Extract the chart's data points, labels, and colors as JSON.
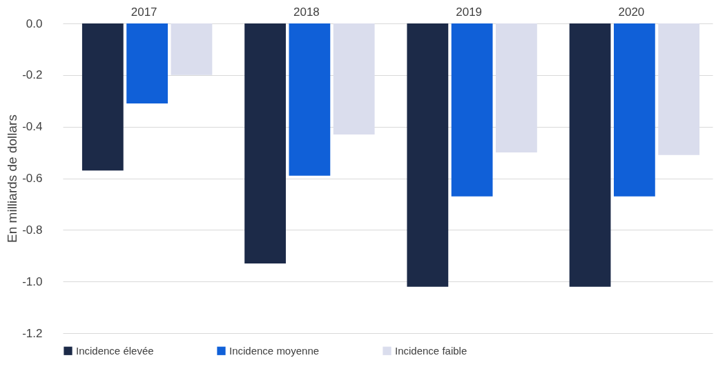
{
  "chart_data": {
    "type": "bar",
    "ylabel": "En milliards de dollars",
    "categories": [
      "2017",
      "2018",
      "2019",
      "2020"
    ],
    "series": [
      {
        "name": "Incidence élevée",
        "color": "#1c2a48",
        "values": [
          -0.57,
          -0.93,
          -1.02,
          -1.02
        ]
      },
      {
        "name": "Incidence moyenne",
        "color": "#1060d8",
        "values": [
          -0.31,
          -0.59,
          -0.67,
          -0.67
        ]
      },
      {
        "name": "Incidence faible",
        "color": "#dadded",
        "values": [
          -0.2,
          -0.43,
          -0.5,
          -0.51
        ]
      }
    ],
    "ylim": [
      -1.2,
      0
    ],
    "yticks": [
      {
        "value": 0,
        "label": "0.0"
      },
      -0.2,
      -0.4,
      -0.6,
      -0.8,
      {
        "value": -1,
        "label": "-1.0"
      },
      -1.2
    ],
    "grid": "y",
    "legend": "bottom"
  }
}
